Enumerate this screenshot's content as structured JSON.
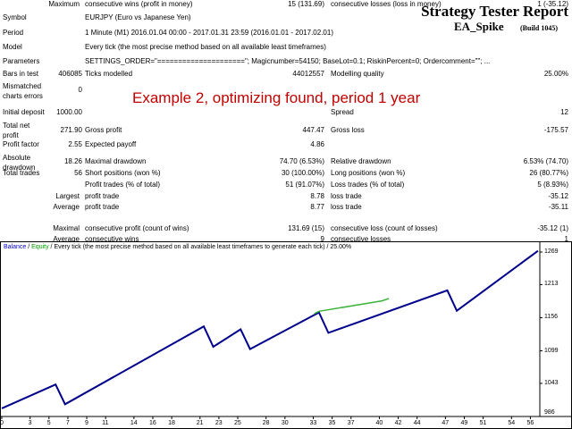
{
  "header": {
    "title": "Strategy Tester Report",
    "ea_name": "EA_Spike",
    "build": "(Build 1045)"
  },
  "rows": {
    "symbol": {
      "label": "Symbol",
      "value": "EURJPY (Euro vs Japanese Yen)"
    },
    "period": {
      "label": "Period",
      "value": "1 Minute (M1) 2016.01.04 00:00 - 2017.01.31 23:59 (2016.01.01 - 2017.02.01)"
    },
    "model": {
      "label": "Model",
      "value": "Every tick (the most precise method based on all available least timeframes)"
    },
    "parameters": {
      "label": "Parameters",
      "value": "SETTINGS_ORDER=\"=====================\"; Magicnumber=54150; BaseLot=0.1; RiskinPercent=0; Ordercomment=\"\"; ..."
    },
    "bars": {
      "label": "Bars in test",
      "value": "406085",
      "label2": "Ticks modelled",
      "value2": "44012557",
      "label3": "Modelling quality",
      "value3": "25.00%"
    },
    "mismatched": {
      "label": "Mismatched charts errors",
      "value": "0"
    },
    "initial_deposit": {
      "label": "Initial deposit",
      "value": "1000.00",
      "label3": "Spread",
      "value3": "12"
    },
    "net_profit": {
      "label": "Total net profit",
      "value": "271.90",
      "label2": "Gross profit",
      "value2": "447.47",
      "label3": "Gross loss",
      "value3": "-175.57"
    },
    "profit_factor": {
      "label": "Profit factor",
      "value": "2.55",
      "label2": "Expected payoff",
      "value2": "4.86"
    },
    "abs_drawdown": {
      "label": "Absolute drawdown",
      "value": "18.26",
      "label2": "Maximal drawdown",
      "value2": "74.70 (6.53%)",
      "label3": "Relative drawdown",
      "value3": "6.53% (74.70)"
    },
    "total_trades": {
      "label": "Total trades",
      "value": "56",
      "label2": "Short positions (won %)",
      "value2": "30 (100.00%)",
      "label3": "Long positions (won %)",
      "value3": "26 (80.77%)"
    },
    "profit_trades": {
      "label2": "Profit trades (% of total)",
      "value2": "51 (91.07%)",
      "label3": "Loss trades (% of total)",
      "value3": "5 (8.93%)"
    },
    "largest": {
      "label": "Largest",
      "label2": "profit trade",
      "value2": "8.78",
      "label3": "loss trade",
      "value3": "-35.12"
    },
    "average": {
      "label": "Average",
      "label2": "profit trade",
      "value2": "8.77",
      "label3": "loss trade",
      "value3": "-35.11"
    },
    "maximum": {
      "label": "Maximum",
      "label2": "consecutive wins (profit in money)",
      "value2": "15 (131.69)",
      "label3": "consecutive losses (loss in money)",
      "value3": "1 (-35.12)"
    },
    "maximal": {
      "label": "Maximal",
      "label2": "consecutive profit (count of wins)",
      "value2": "131.69 (15)",
      "label3": "consecutive loss (count of losses)",
      "value3": "-35.12 (1)"
    },
    "average2": {
      "label": "Average",
      "label2": "consecutive wins",
      "value2": "9",
      "label3": "consecutive losses",
      "value3": "1"
    }
  },
  "headline": "Example 2, optimizing found, period 1 year",
  "chart": {
    "legend_balance": "Balance",
    "legend_sep": " / ",
    "legend_equity": "Equity",
    "legend_rest": " / Every tick (the most precise method based on all available least timeframes to generate each tick) / 25.00%",
    "y_ticks": [
      "1269",
      "1213",
      "1156",
      "1099",
      "1043",
      "986"
    ],
    "x_ticks": [
      "0",
      "3",
      "5",
      "7",
      "9",
      "11",
      "14",
      "16",
      "18",
      "21",
      "23",
      "25",
      "28",
      "30",
      "33",
      "35",
      "37",
      "40",
      "42",
      "44",
      "47",
      "49",
      "51",
      "54",
      "56"
    ],
    "colors": {
      "balance": "#00008b",
      "equity": "#3cb43c",
      "legend_balance": "#0000cd",
      "legend_equity": "#00a000"
    }
  },
  "chart_data": {
    "type": "line",
    "ylim": [
      986,
      1269
    ],
    "xlim": [
      0,
      57
    ],
    "series": [
      {
        "name": "Balance",
        "x": [
          0,
          5.7,
          6.7,
          21.4,
          22.4,
          25.3,
          26.3,
          33.6,
          34.6,
          47.2,
          48.2,
          56.8
        ],
        "y": [
          1000,
          1041,
          1007,
          1141,
          1106,
          1136,
          1102,
          1165,
          1130,
          1203,
          1168,
          1271
        ]
      },
      {
        "name": "Equity",
        "x": [
          33.1,
          33.6,
          40.3,
          41.0
        ],
        "y": [
          1163,
          1167,
          1185,
          1189
        ]
      }
    ]
  }
}
